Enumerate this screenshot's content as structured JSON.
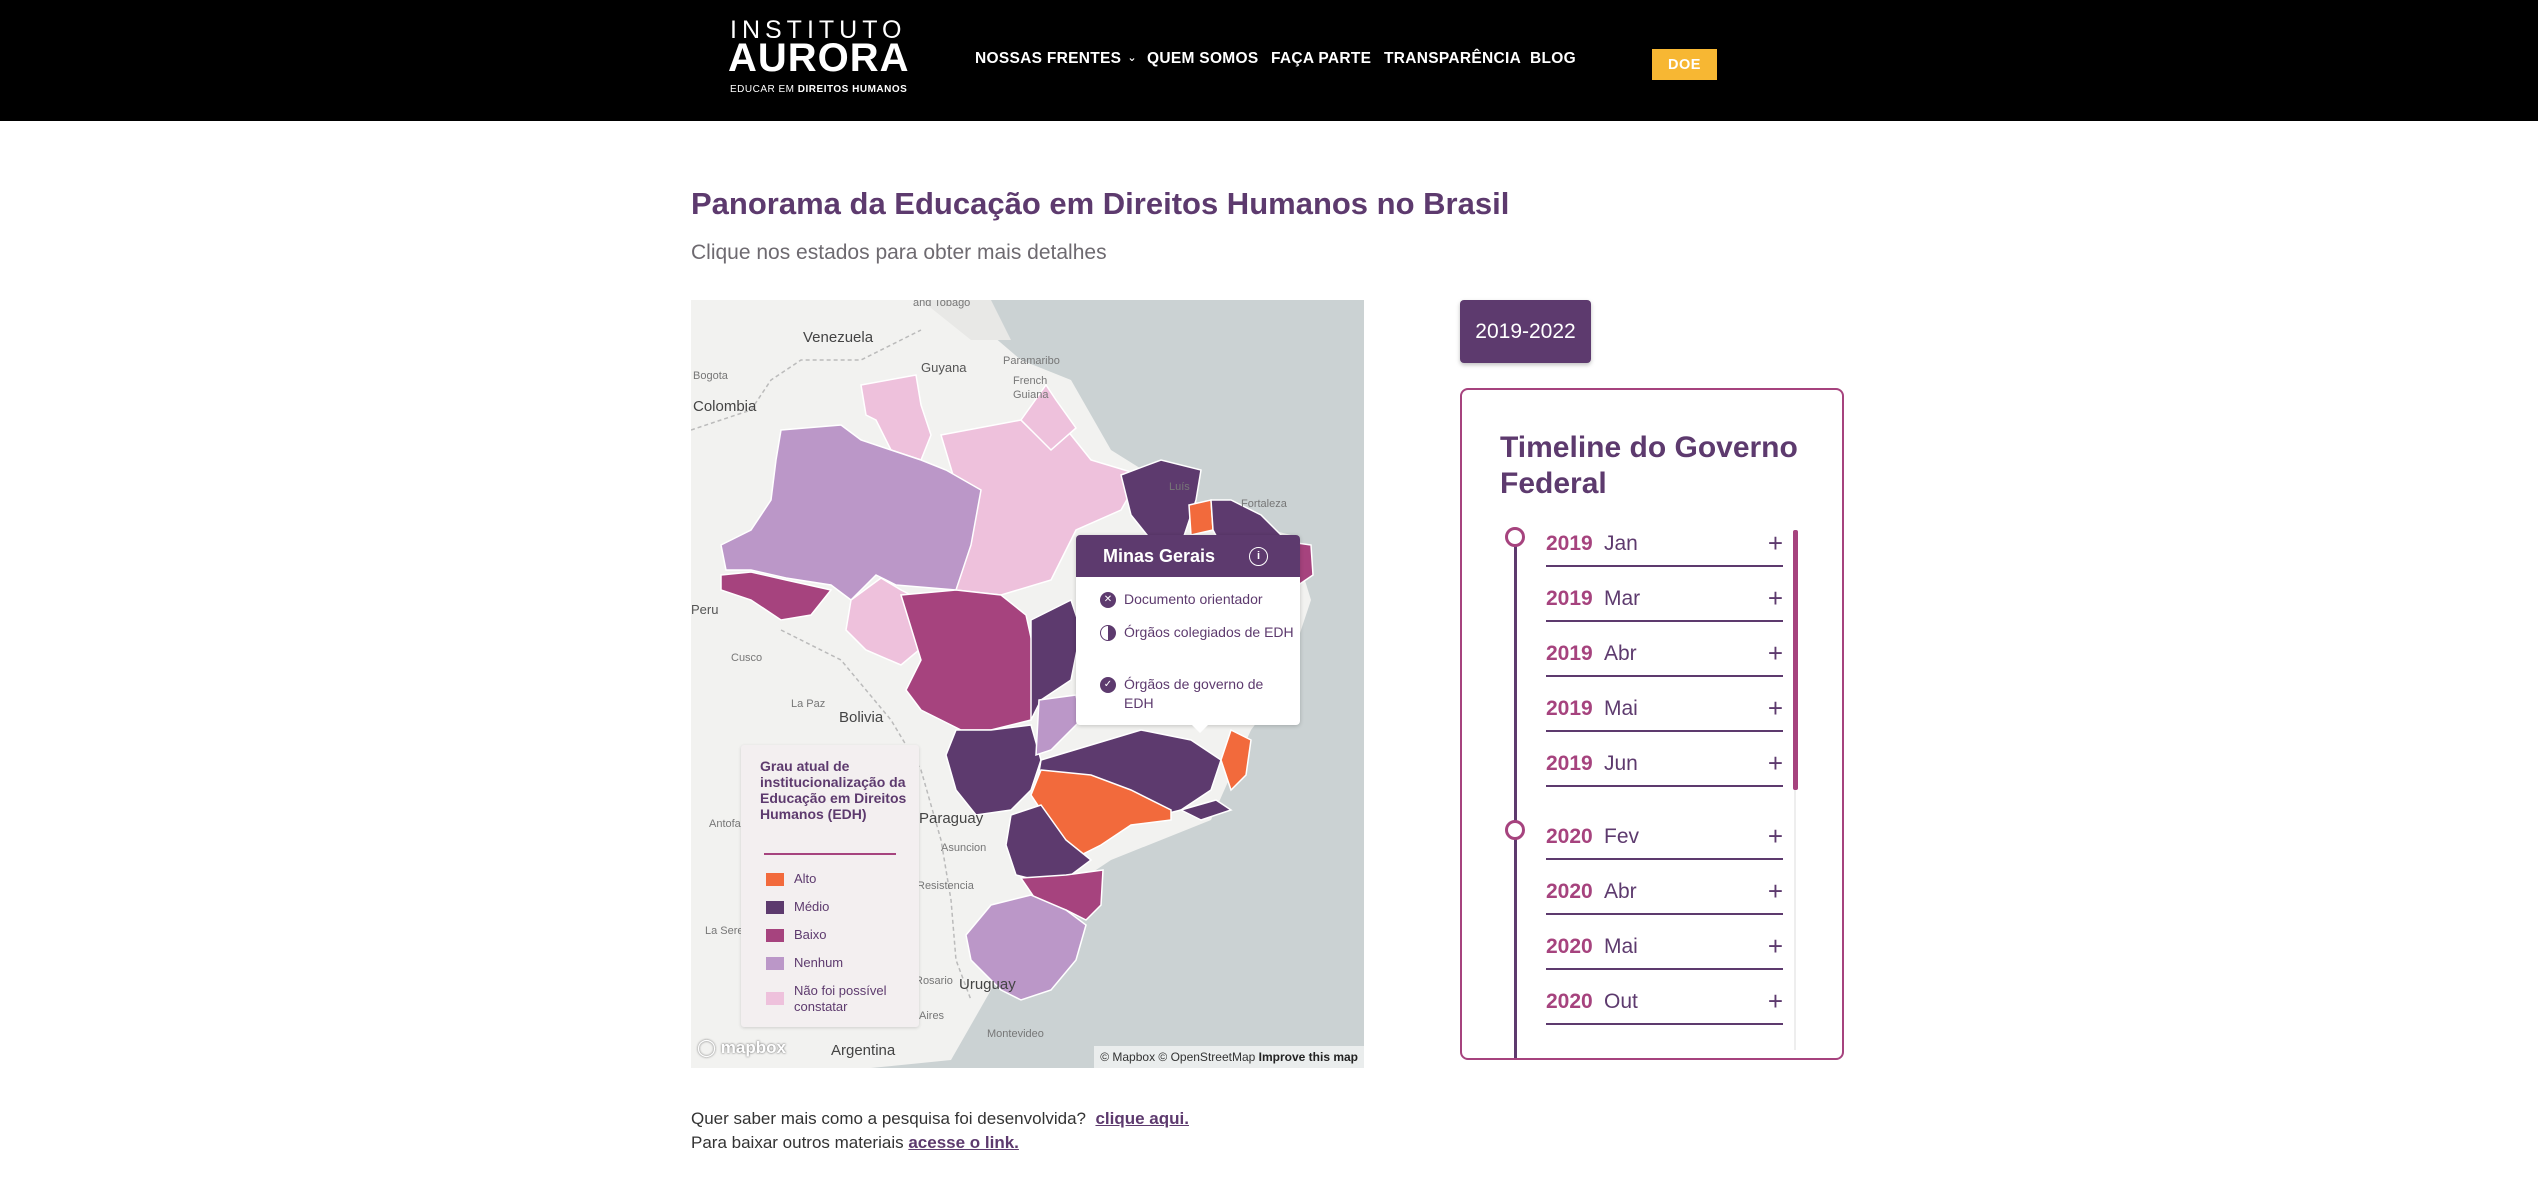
{
  "header": {
    "logo": {
      "line1": "INSTITUTO",
      "line2": "AURORA",
      "line3_pre": "EDUCAR EM ",
      "line3_bold": "DIREITOS HUMANOS"
    },
    "nav": [
      {
        "label": "NOSSAS FRENTES",
        "has_dropdown": true
      },
      {
        "label": "QUEM SOMOS"
      },
      {
        "label": "FAÇA PARTE"
      },
      {
        "label": "TRANSPARÊNCIA"
      },
      {
        "label": "BLOG"
      }
    ],
    "donate_label": "DOE",
    "colors": {
      "bar": "#000000",
      "donate": "#f7b733"
    }
  },
  "main": {
    "title": "Panorama da Educação em Direitos Humanos no Brasil",
    "subtitle": "Clique nos estados para obter mais detalhes"
  },
  "map": {
    "labels": [
      "Venezuela",
      "Guyana",
      "Paramaribo",
      "French Guiana",
      "Bogota",
      "Colombia",
      "Peru",
      "Cusco",
      "La Paz",
      "Bolivia",
      "Paraguay",
      "Asuncion",
      "Resistencia",
      "Antofagasta",
      "La Serena",
      "Uruguay",
      "Montevideo",
      "Argentina",
      "and Tobago",
      "Luís",
      "Fortaleza",
      "Rosario",
      "Aires"
    ],
    "tooltip": {
      "state": "Minas Gerais",
      "items": [
        {
          "icon": "x-circle-icon",
          "label": "Documento orientador"
        },
        {
          "icon": "half-circle-icon",
          "label": "Órgãos colegiados de EDH"
        },
        {
          "icon": "check-circle-icon",
          "label": "Órgãos de governo de EDH"
        }
      ]
    },
    "legend": {
      "title": "Grau atual de institucionalização da Educação em Direitos Humanos (EDH)",
      "items": [
        {
          "label": "Alto",
          "color": "#f26a3c"
        },
        {
          "label": "Médio",
          "color": "#5d3a6e"
        },
        {
          "label": "Baixo",
          "color": "#a6437e"
        },
        {
          "label": "Nenhum",
          "color": "#bb97c8"
        },
        {
          "label": "Não foi possível constatar",
          "color": "#eec1dc"
        }
      ]
    },
    "mapbox_logo": "mapbox",
    "attribution": {
      "text": "© Mapbox © OpenStreetMap",
      "improve": "Improve this map"
    }
  },
  "timeline": {
    "period_button": "2019-2022",
    "title": "Timeline do Governo Federal",
    "entries": [
      {
        "year": "2019",
        "month": "Jan",
        "first_of_year": true
      },
      {
        "year": "2019",
        "month": "Mar"
      },
      {
        "year": "2019",
        "month": "Abr"
      },
      {
        "year": "2019",
        "month": "Mai"
      },
      {
        "year": "2019",
        "month": "Jun"
      },
      {
        "year": "2020",
        "month": "Fev",
        "first_of_year": true
      },
      {
        "year": "2020",
        "month": "Abr"
      },
      {
        "year": "2020",
        "month": "Mai"
      },
      {
        "year": "2020",
        "month": "Out"
      }
    ]
  },
  "footer": {
    "line1_text": "Quer saber mais como a pesquisa foi desenvolvida?",
    "line1_link": "clique aqui.",
    "line2_text": "Para baixar outros materiais",
    "line2_link": "acesse o link."
  }
}
